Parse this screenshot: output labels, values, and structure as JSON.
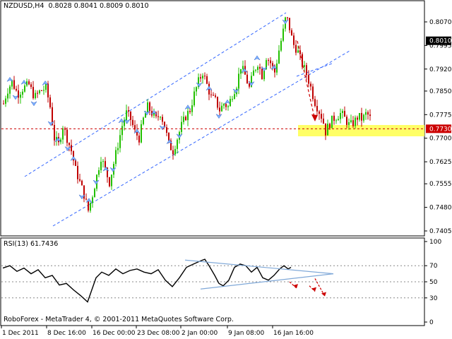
{
  "header": {
    "symbol": "NZDUSD,H4",
    "ohlc": "0.8028 0.8041 0.8009 0.8010"
  },
  "rsi_header": "RSI(13) 61.7436",
  "copyright": "RoboForex - MetaTrader 4, © 2001-2011 MetaQuotes Software Corp.",
  "colors": {
    "bull": "#22c000",
    "bear": "#c00000",
    "support": "#ffff66",
    "channel": "#3366ff",
    "level_line": "#cc0000"
  },
  "chart_data": [
    {
      "type": "candlestick",
      "title": "NZDUSD,H4",
      "y_ticks": [
        "0.8070",
        "0.7995",
        "0.7920",
        "0.7850",
        "0.7775",
        "0.7700",
        "0.7625",
        "0.7555",
        "0.7480",
        "0.7405"
      ],
      "current_price_label": "0.8010",
      "level_label": "0.7730",
      "ylim": [
        0.7405,
        0.811
      ],
      "support_level": 0.773,
      "x_ticks": [
        "1 Dec 2011",
        "8 Dec 16:00",
        "16 Dec 00:00",
        "23 Dec 08:00",
        "2 Jan 00:00",
        "9 Jan 08:00",
        "16 Jan 16:00"
      ],
      "path": [
        [
          0,
          0.781
        ],
        [
          5,
          0.785
        ],
        [
          12,
          0.788
        ],
        [
          20,
          0.784
        ],
        [
          28,
          0.786
        ],
        [
          36,
          0.787
        ],
        [
          44,
          0.783
        ],
        [
          52,
          0.785
        ],
        [
          60,
          0.786
        ],
        [
          66,
          0.78
        ],
        [
          72,
          0.77
        ],
        [
          78,
          0.768
        ],
        [
          84,
          0.774
        ],
        [
          90,
          0.77
        ],
        [
          96,
          0.766
        ],
        [
          102,
          0.76
        ],
        [
          108,
          0.756
        ],
        [
          114,
          0.752
        ],
        [
          120,
          0.747
        ],
        [
          126,
          0.752
        ],
        [
          132,
          0.758
        ],
        [
          138,
          0.764
        ],
        [
          144,
          0.76
        ],
        [
          150,
          0.756
        ],
        [
          156,
          0.762
        ],
        [
          162,
          0.768
        ],
        [
          168,
          0.774
        ],
        [
          174,
          0.778
        ],
        [
          180,
          0.776
        ],
        [
          186,
          0.772
        ],
        [
          192,
          0.77
        ],
        [
          198,
          0.776
        ],
        [
          204,
          0.78
        ],
        [
          210,
          0.778
        ],
        [
          216,
          0.776
        ],
        [
          222,
          0.778
        ],
        [
          228,
          0.774
        ],
        [
          234,
          0.768
        ],
        [
          240,
          0.766
        ],
        [
          246,
          0.77
        ],
        [
          252,
          0.774
        ],
        [
          258,
          0.777
        ],
        [
          264,
          0.779
        ],
        [
          270,
          0.784
        ],
        [
          276,
          0.788
        ],
        [
          282,
          0.791
        ],
        [
          288,
          0.787
        ],
        [
          294,
          0.783
        ],
        [
          300,
          0.782
        ],
        [
          306,
          0.779
        ],
        [
          312,
          0.781
        ],
        [
          318,
          0.78
        ],
        [
          324,
          0.784
        ],
        [
          330,
          0.787
        ],
        [
          336,
          0.793
        ],
        [
          342,
          0.79
        ],
        [
          348,
          0.786
        ],
        [
          354,
          0.791
        ],
        [
          360,
          0.794
        ],
        [
          366,
          0.79
        ],
        [
          372,
          0.796
        ],
        [
          378,
          0.794
        ],
        [
          384,
          0.791
        ],
        [
          390,
          0.798
        ],
        [
          396,
          0.804
        ],
        [
          400,
          0.809
        ],
        [
          404,
          0.806
        ],
        [
          410,
          0.8
        ],
        [
          416,
          0.798
        ],
        [
          422,
          0.794
        ],
        [
          428,
          0.791
        ],
        [
          434,
          0.787
        ],
        [
          440,
          0.782
        ],
        [
          446,
          0.779
        ],
        [
          452,
          0.776
        ],
        [
          456,
          0.772
        ],
        [
          460,
          0.774
        ],
        [
          466,
          0.776
        ],
        [
          472,
          0.777
        ],
        [
          478,
          0.778
        ],
        [
          484,
          0.776
        ],
        [
          490,
          0.774
        ],
        [
          496,
          0.775
        ],
        [
          502,
          0.777
        ],
        [
          508,
          0.776
        ],
        [
          514,
          0.778
        ],
        [
          520,
          0.776
        ]
      ]
    },
    {
      "type": "line",
      "title": "RSI(13) 61.7436",
      "y_ticks": [
        "100",
        "70",
        "50",
        "30",
        "0"
      ],
      "ylim": [
        0,
        100
      ],
      "levels": [
        70,
        50,
        30
      ],
      "path": [
        [
          0,
          67
        ],
        [
          10,
          70
        ],
        [
          20,
          63
        ],
        [
          30,
          67
        ],
        [
          40,
          60
        ],
        [
          50,
          65
        ],
        [
          60,
          55
        ],
        [
          70,
          58
        ],
        [
          80,
          46
        ],
        [
          90,
          48
        ],
        [
          100,
          40
        ],
        [
          110,
          33
        ],
        [
          120,
          25
        ],
        [
          126,
          40
        ],
        [
          132,
          55
        ],
        [
          140,
          62
        ],
        [
          150,
          58
        ],
        [
          160,
          66
        ],
        [
          170,
          60
        ],
        [
          180,
          64
        ],
        [
          190,
          66
        ],
        [
          200,
          62
        ],
        [
          210,
          60
        ],
        [
          220,
          65
        ],
        [
          230,
          52
        ],
        [
          240,
          44
        ],
        [
          250,
          55
        ],
        [
          260,
          68
        ],
        [
          270,
          72
        ],
        [
          280,
          76
        ],
        [
          286,
          78
        ],
        [
          292,
          70
        ],
        [
          300,
          58
        ],
        [
          306,
          48
        ],
        [
          312,
          45
        ],
        [
          320,
          52
        ],
        [
          328,
          68
        ],
        [
          336,
          72
        ],
        [
          344,
          70
        ],
        [
          352,
          62
        ],
        [
          360,
          68
        ],
        [
          368,
          55
        ],
        [
          376,
          52
        ],
        [
          384,
          58
        ],
        [
          392,
          66
        ],
        [
          398,
          70
        ],
        [
          404,
          66
        ],
        [
          408,
          68
        ]
      ]
    }
  ]
}
